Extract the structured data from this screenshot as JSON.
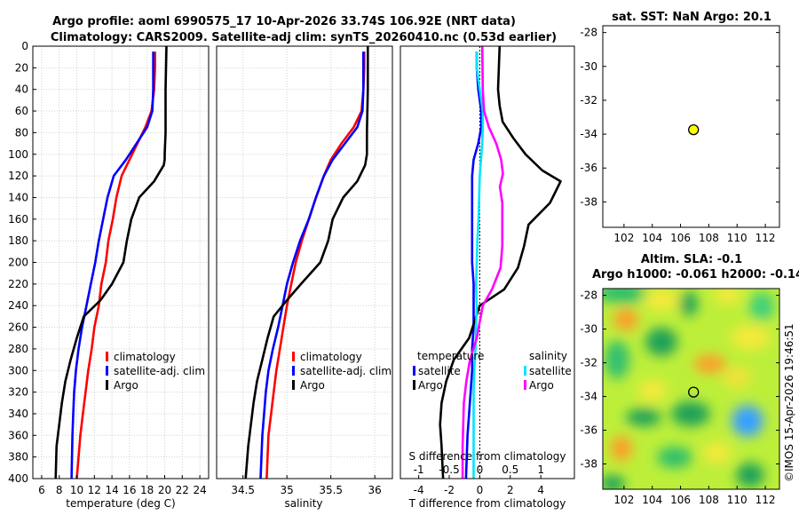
{
  "title": {
    "line1": "Argo profile: aoml 6990575_17 10-Apr-2026 33.74S 106.92E (NRT data)",
    "line2": "Climatology: CARS2009. Satellite-adj clim: synTS_20260410.nc (0.53d earlier)"
  },
  "colors": {
    "climatology": "#ff0000",
    "satellite": "#0000ff",
    "argo": "#000000",
    "salinity_satellite": "#00e5ff",
    "salinity_argo": "#ff00ff",
    "marker": "#ffff00"
  },
  "chart_data": [
    {
      "type": "line",
      "name": "temperature-profile",
      "xlabel": "temperature (deg C)",
      "ylabel": "depth",
      "xlim": [
        5,
        25
      ],
      "ylim": [
        400,
        0
      ],
      "xticks": [
        "6",
        "8",
        "10",
        "12",
        "14",
        "16",
        "18",
        "20",
        "22",
        "24"
      ],
      "xtick_values": [
        6,
        8,
        10,
        12,
        14,
        16,
        18,
        20,
        22,
        24
      ],
      "yticks": [
        "0",
        "20",
        "40",
        "60",
        "80",
        "100",
        "120",
        "140",
        "160",
        "180",
        "200",
        "220",
        "240",
        "260",
        "280",
        "300",
        "320",
        "340",
        "360",
        "380",
        "400"
      ],
      "ytick_values": [
        0,
        20,
        40,
        60,
        80,
        100,
        120,
        140,
        160,
        180,
        200,
        220,
        240,
        260,
        280,
        300,
        320,
        340,
        360,
        380,
        400
      ],
      "series": [
        {
          "name": "climatology",
          "color": "#ff0000",
          "x": [
            18.9,
            18.9,
            18.8,
            18.5,
            17.8,
            16.9,
            16.0,
            15.1,
            14.5,
            14.1,
            13.6,
            13.3,
            12.8,
            12.5,
            12.0,
            11.7,
            11.3,
            11.0,
            10.7,
            10.4,
            10.0
          ],
          "y": [
            5,
            20,
            40,
            60,
            75,
            90,
            105,
            120,
            140,
            160,
            180,
            200,
            220,
            240,
            260,
            280,
            300,
            320,
            340,
            360,
            400
          ]
        },
        {
          "name": "satellite-adj. clim",
          "color": "#0000ff",
          "x": [
            18.7,
            18.7,
            18.7,
            18.6,
            18.0,
            16.8,
            15.6,
            14.2,
            13.5,
            13.0,
            12.5,
            12.1,
            11.6,
            11.1,
            10.6,
            10.2,
            9.9,
            9.7,
            9.6,
            9.5,
            9.4
          ],
          "y": [
            5,
            20,
            40,
            60,
            75,
            90,
            105,
            120,
            140,
            160,
            180,
            200,
            220,
            240,
            260,
            280,
            300,
            320,
            340,
            360,
            400
          ]
        },
        {
          "name": "Argo",
          "color": "#000000",
          "x": [
            20.2,
            20.1,
            20.1,
            20.0,
            20.0,
            19.9,
            18.8,
            17.1,
            16.2,
            15.7,
            15.3,
            14.0,
            12.7,
            10.8,
            10.0,
            9.3,
            8.7,
            8.3,
            8.0,
            7.7,
            7.6
          ],
          "y": [
            0,
            40,
            80,
            100,
            105,
            110,
            125,
            140,
            160,
            180,
            200,
            220,
            235,
            250,
            270,
            290,
            310,
            330,
            350,
            370,
            400
          ]
        }
      ],
      "legend": {
        "items": [
          "climatology",
          "satellite-adj. clim",
          "Argo"
        ],
        "placement": "lower-right"
      }
    },
    {
      "type": "line",
      "name": "salinity-profile",
      "xlabel": "salinity",
      "xlim": [
        34.2,
        36.2
      ],
      "ylim": [
        400,
        0
      ],
      "xticks": [
        "34.5",
        "35",
        "35.5",
        "36"
      ],
      "xtick_values": [
        34.5,
        35.0,
        35.5,
        36.0
      ],
      "series": [
        {
          "name": "climatology",
          "color": "#ff0000",
          "x": [
            35.88,
            35.88,
            35.87,
            35.85,
            35.76,
            35.62,
            35.5,
            35.42,
            35.33,
            35.25,
            35.17,
            35.1,
            35.05,
            35.0,
            34.96,
            34.92,
            34.88,
            34.85,
            34.82,
            34.79,
            34.77
          ],
          "y": [
            5,
            20,
            40,
            60,
            75,
            90,
            105,
            120,
            140,
            160,
            180,
            200,
            220,
            240,
            260,
            280,
            300,
            320,
            340,
            360,
            400
          ]
        },
        {
          "name": "satellite-adj. clim",
          "color": "#0000ff",
          "x": [
            35.87,
            35.87,
            35.87,
            35.86,
            35.8,
            35.66,
            35.52,
            35.42,
            35.33,
            35.25,
            35.15,
            35.07,
            35.0,
            34.95,
            34.9,
            34.84,
            34.79,
            34.76,
            34.74,
            34.72,
            34.7
          ],
          "y": [
            5,
            20,
            40,
            60,
            75,
            90,
            105,
            120,
            140,
            160,
            180,
            200,
            220,
            240,
            260,
            280,
            300,
            320,
            340,
            360,
            400
          ]
        },
        {
          "name": "Argo",
          "color": "#000000",
          "x": [
            35.92,
            35.92,
            35.91,
            35.91,
            35.9,
            35.89,
            35.8,
            35.64,
            35.52,
            35.47,
            35.38,
            35.16,
            35.0,
            34.85,
            34.78,
            34.72,
            34.66,
            34.62,
            34.59,
            34.56,
            34.53
          ],
          "y": [
            0,
            40,
            80,
            100,
            105,
            110,
            125,
            140,
            160,
            180,
            200,
            220,
            235,
            250,
            270,
            290,
            310,
            330,
            350,
            370,
            400
          ]
        }
      ],
      "legend": {
        "items": [
          "climatology",
          "satellite-adj. clim",
          "Argo"
        ],
        "placement": "lower-right"
      }
    },
    {
      "type": "line",
      "name": "difference-profile",
      "xlabel": "T difference from climatology",
      "xlabel_top": "S difference from climatology",
      "xlim": [
        -5.2,
        6.2
      ],
      "ylim": [
        400,
        0
      ],
      "xticks": [
        "-4",
        "-2",
        "0",
        "2",
        "4"
      ],
      "xtick_values": [
        -4,
        -2,
        0,
        2,
        4
      ],
      "s_xticks": [
        "-1",
        "-0.5",
        "0",
        "0.5",
        "1"
      ],
      "s_xtick_values": [
        -1,
        -0.5,
        0,
        0.5,
        1
      ],
      "s_scale": 4,
      "series": [
        {
          "name": "temperature satellite",
          "color": "#0000ff",
          "x": [
            -0.2,
            -0.2,
            -0.1,
            0.1,
            0.1,
            -0.1,
            -0.4,
            -0.5,
            -0.5,
            -0.5,
            -0.5,
            -0.5,
            -0.4,
            -0.4,
            -0.4,
            -0.5,
            -0.5,
            -0.6,
            -0.7,
            -0.8,
            -0.9
          ],
          "y": [
            5,
            20,
            40,
            60,
            75,
            90,
            105,
            120,
            140,
            160,
            180,
            200,
            220,
            240,
            260,
            280,
            300,
            320,
            340,
            360,
            400
          ]
        },
        {
          "name": "temperature Argo",
          "color": "#000000",
          "x": [
            1.3,
            1.2,
            1.3,
            1.5,
            2.2,
            3.0,
            4.1,
            5.3,
            4.6,
            3.2,
            2.9,
            2.5,
            1.6,
            0.0,
            -0.7,
            -1.7,
            -2.2,
            -2.5,
            -2.6,
            -2.5,
            -2.4
          ],
          "y": [
            0,
            40,
            55,
            70,
            85,
            100,
            115,
            125,
            145,
            165,
            185,
            205,
            225,
            240,
            270,
            290,
            310,
            330,
            350,
            370,
            400
          ]
        },
        {
          "name": "salinity satellite",
          "color": "#00e5ff",
          "x": [
            -0.05,
            -0.05,
            0.0,
            0.05,
            0.05,
            0.04,
            0.02,
            0.0,
            -0.01,
            -0.02,
            -0.04,
            -0.05,
            -0.06,
            -0.05,
            -0.06,
            -0.07,
            -0.09,
            -0.1,
            -0.1,
            -0.1,
            -0.1
          ],
          "y": [
            5,
            20,
            40,
            60,
            75,
            90,
            105,
            120,
            140,
            160,
            180,
            200,
            220,
            240,
            260,
            280,
            300,
            320,
            340,
            360,
            400
          ]
        },
        {
          "name": "salinity Argo",
          "color": "#ff00ff",
          "x": [
            0.04,
            0.05,
            0.07,
            0.15,
            0.27,
            0.35,
            0.38,
            0.33,
            0.37,
            0.37,
            0.37,
            0.34,
            0.2,
            0.05,
            -0.05,
            -0.16,
            -0.22,
            -0.26,
            -0.27,
            -0.28,
            -0.28
          ],
          "y": [
            0,
            40,
            60,
            75,
            90,
            105,
            118,
            130,
            145,
            165,
            185,
            205,
            225,
            240,
            270,
            290,
            310,
            330,
            350,
            370,
            400
          ]
        }
      ],
      "legend": {
        "temperature_heading": "temperature",
        "salinity_heading": "salinity",
        "temperature_items": [
          "satellite",
          "Argo"
        ],
        "salinity_items": [
          "satellite",
          "Argo"
        ]
      }
    },
    {
      "type": "scatter",
      "name": "sst-map",
      "title": "sat. SST: NaN Argo: 20.1",
      "xlim": [
        100.5,
        113
      ],
      "ylim": [
        -39.5,
        -27.6
      ],
      "xticks": [
        "102",
        "104",
        "106",
        "108",
        "110",
        "112"
      ],
      "xtick_values": [
        102,
        104,
        106,
        108,
        110,
        112
      ],
      "yticks": [
        "-28",
        "-30",
        "-32",
        "-34",
        "-36",
        "-38"
      ],
      "ytick_values": [
        -28,
        -30,
        -32,
        -34,
        -36,
        -38
      ],
      "points": [
        {
          "lon": 106.92,
          "lat": -33.74
        }
      ]
    },
    {
      "type": "heatmap",
      "name": "sla-map",
      "title_line1": "Altim. SLA: -0.1",
      "title_line2": "Argo h1000: -0.061 h2000: -0.14",
      "xlim": [
        100.5,
        113
      ],
      "ylim": [
        -39.5,
        -27.6
      ],
      "xticks": [
        "102",
        "104",
        "106",
        "108",
        "110",
        "112"
      ],
      "xtick_values": [
        102,
        104,
        106,
        108,
        110,
        112
      ],
      "yticks": [
        "-28",
        "-30",
        "-32",
        "-34",
        "-36",
        "-38"
      ],
      "ytick_values": [
        -28,
        -30,
        -32,
        -34,
        -36,
        -38
      ],
      "points": [
        {
          "lon": 106.92,
          "lat": -33.74
        }
      ],
      "credit": "©IMOS 15-Apr-2026 19:46:51"
    }
  ]
}
